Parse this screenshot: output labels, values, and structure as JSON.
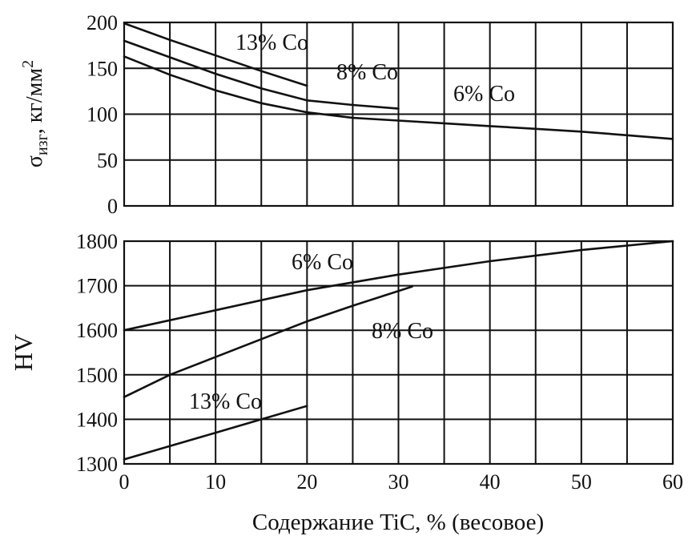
{
  "chart_data": [
    {
      "type": "line",
      "ylabel": "σизг, кг/мм²",
      "ylabel_main": "σ",
      "ylabel_sub": "изг",
      "ylabel_unit": ", кг/мм",
      "ylabel_sup": "2",
      "xlim": [
        0,
        60
      ],
      "ylim": [
        0,
        200
      ],
      "x_ticks": [
        0,
        10,
        20,
        30,
        40,
        50,
        60
      ],
      "y_ticks": [
        "0",
        "50",
        "100",
        "150",
        "200"
      ],
      "grid": true,
      "series": [
        {
          "name": "13% Co",
          "x": [
            0,
            5,
            10,
            15,
            20
          ],
          "y": [
            199,
            181,
            164,
            147,
            131
          ]
        },
        {
          "name": "8% Co",
          "x": [
            0,
            5,
            10,
            15,
            20,
            25,
            30
          ],
          "y": [
            180,
            162,
            144,
            128,
            115,
            110,
            106
          ]
        },
        {
          "name": "6% Co",
          "x": [
            0,
            5,
            10,
            15,
            20,
            25,
            30,
            35,
            40,
            45,
            50,
            55,
            60
          ],
          "y": [
            163,
            143,
            126,
            112,
            102,
            96,
            93,
            90,
            87,
            84,
            81,
            77,
            73
          ]
        }
      ]
    },
    {
      "type": "line",
      "ylabel": "HV",
      "xlabel": "Содержание TiC, % (весовое)",
      "xlim": [
        0,
        60
      ],
      "ylim": [
        1300,
        1800
      ],
      "x_ticks": [
        "0",
        "10",
        "20",
        "30",
        "40",
        "50",
        "60"
      ],
      "y_ticks": [
        "1300",
        "1400",
        "1500",
        "1600",
        "1700",
        "1800"
      ],
      "grid": true,
      "series": [
        {
          "name": "6% Co",
          "x": [
            0,
            10,
            20,
            30,
            40,
            50,
            60
          ],
          "y": [
            1600,
            1645,
            1690,
            1725,
            1755,
            1780,
            1800
          ]
        },
        {
          "name": "8% Co",
          "x": [
            0,
            5,
            10,
            15,
            20,
            25,
            31.5
          ],
          "y": [
            1450,
            1500,
            1540,
            1580,
            1620,
            1655,
            1698
          ]
        },
        {
          "name": "13% Co",
          "x": [
            0,
            5,
            10,
            15,
            20
          ],
          "y": [
            1310,
            1340,
            1370,
            1400,
            1430
          ]
        }
      ]
    }
  ]
}
